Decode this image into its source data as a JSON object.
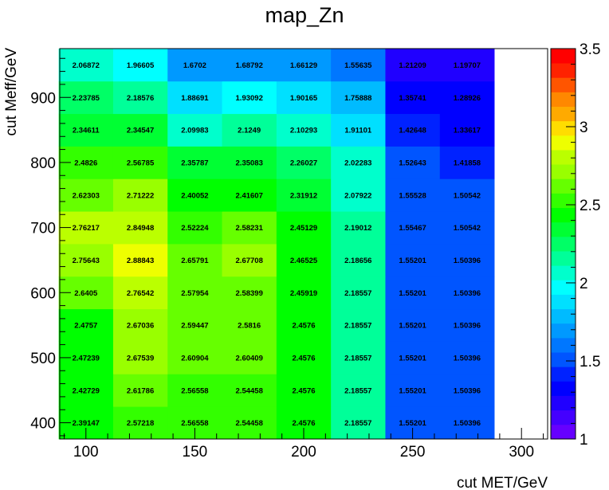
{
  "chart_data": {
    "type": "heatmap",
    "title": "map_Zn",
    "xlabel": "cut MET/GeV",
    "ylabel": "cut Meff/GeV",
    "x_bins": [
      100,
      125,
      150,
      175,
      200,
      225,
      250,
      275
    ],
    "x_bin_width": 25,
    "y_bins": [
      400,
      450,
      500,
      550,
      600,
      650,
      700,
      750,
      800,
      850,
      900,
      950
    ],
    "y_bin_height": 50,
    "xlim": [
      88,
      312
    ],
    "ylim": [
      375,
      975
    ],
    "x_ticks": [
      "100",
      "150",
      "200",
      "250",
      "300"
    ],
    "y_ticks": [
      "400",
      "500",
      "600",
      "700",
      "800",
      "900"
    ],
    "zlim": [
      1,
      3.5
    ],
    "z_ticks": [
      "1",
      "1.5",
      "2",
      "2.5",
      "3",
      "3.5"
    ],
    "palette": [
      "#6600ff",
      "#4400ff",
      "#2000ff",
      "#0000ff",
      "#0022ff",
      "#0055ff",
      "#0077ff",
      "#0099ff",
      "#00bbff",
      "#00e0ff",
      "#00ffff",
      "#00ffcc",
      "#00ff99",
      "#00ff66",
      "#00ff33",
      "#00ff00",
      "#33ff00",
      "#66ff00",
      "#99ff00",
      "#bbff00",
      "#eeff00",
      "#ffdd00",
      "#ffaa00",
      "#ff8800",
      "#ff5500",
      "#ff2200",
      "#ff0000"
    ],
    "rows": [
      {
        "y": 400,
        "values": [
          2.39147,
          2.57218,
          2.56558,
          2.54458,
          2.4576,
          2.18557,
          1.55201,
          1.50396
        ],
        "labels": [
          "2.39147",
          "2.57218",
          "2.56558",
          "2.54458",
          "2.4576",
          "2.18557",
          "1.55201",
          "1.50396"
        ]
      },
      {
        "y": 450,
        "values": [
          2.42729,
          2.61786,
          2.56558,
          2.54458,
          2.4576,
          2.18557,
          1.55201,
          1.50396
        ],
        "labels": [
          "2.42729",
          "2.61786",
          "2.56558",
          "2.54458",
          "2.4576",
          "2.18557",
          "1.55201",
          "1.50396"
        ]
      },
      {
        "y": 500,
        "values": [
          2.47239,
          2.67539,
          2.60904,
          2.60409,
          2.4576,
          2.18557,
          1.55201,
          1.50396
        ],
        "labels": [
          "2.47239",
          "2.67539",
          "2.60904",
          "2.60409",
          "2.4576",
          "2.18557",
          "1.55201",
          "1.50396"
        ]
      },
      {
        "y": 550,
        "values": [
          2.4757,
          2.67036,
          2.59447,
          2.5816,
          2.4576,
          2.18557,
          1.55201,
          1.50396
        ],
        "labels": [
          "2.4757",
          "2.67036",
          "2.59447",
          "2.5816",
          "2.4576",
          "2.18557",
          "1.55201",
          "1.50396"
        ]
      },
      {
        "y": 600,
        "values": [
          2.6405,
          2.76542,
          2.57954,
          2.58399,
          2.45919,
          2.18557,
          1.55201,
          1.50396
        ],
        "labels": [
          "2.6405",
          "2.76542",
          "2.57954",
          "2.58399",
          "2.45919",
          "2.18557",
          "1.55201",
          "1.50396"
        ]
      },
      {
        "y": 650,
        "values": [
          2.75643,
          2.88843,
          2.65791,
          2.67708,
          2.46525,
          2.18656,
          1.55201,
          1.50396
        ],
        "labels": [
          "2.75643",
          "2.88843",
          "2.65791",
          "2.67708",
          "2.46525",
          "2.18656",
          "1.55201",
          "1.50396"
        ]
      },
      {
        "y": 700,
        "values": [
          2.76217,
          2.84948,
          2.52224,
          2.58231,
          2.45129,
          2.19012,
          1.55467,
          1.50542
        ],
        "labels": [
          "2.76217",
          "2.84948",
          "2.52224",
          "2.58231",
          "2.45129",
          "2.19012",
          "1.55467",
          "1.50542"
        ]
      },
      {
        "y": 750,
        "values": [
          2.62303,
          2.71222,
          2.40052,
          2.41607,
          2.31912,
          2.07922,
          1.55528,
          1.50542
        ],
        "labels": [
          "2.62303",
          "2.71222",
          "2.40052",
          "2.41607",
          "2.31912",
          "2.07922",
          "1.55528",
          "1.50542"
        ]
      },
      {
        "y": 800,
        "values": [
          2.4826,
          2.56785,
          2.35787,
          2.35083,
          2.26027,
          2.02283,
          1.52643,
          1.41858
        ],
        "labels": [
          "2.4826",
          "2.56785",
          "2.35787",
          "2.35083",
          "2.26027",
          "2.02283",
          "1.52643",
          "1.41858"
        ]
      },
      {
        "y": 850,
        "values": [
          2.34611,
          2.34547,
          2.09983,
          2.1249,
          2.10293,
          1.91101,
          1.42648,
          1.33617
        ],
        "labels": [
          "2.34611",
          "2.34547",
          "2.09983",
          "2.1249",
          "2.10293",
          "1.91101",
          "1.42648",
          "1.33617"
        ]
      },
      {
        "y": 900,
        "values": [
          2.23785,
          2.18576,
          1.88691,
          1.93092,
          1.90165,
          1.75888,
          1.35741,
          1.28926
        ],
        "labels": [
          "2.23785",
          "2.18576",
          "1.88691",
          "1.93092",
          "1.90165",
          "1.75888",
          "1.35741",
          "1.28926"
        ]
      },
      {
        "y": 950,
        "values": [
          2.06872,
          1.96605,
          1.6702,
          1.68792,
          1.66129,
          1.55635,
          1.21209,
          1.19707
        ],
        "labels": [
          "2.06872",
          "1.96605",
          "1.6702",
          "1.68792",
          "1.66129",
          "1.55635",
          "1.21209",
          "1.19707"
        ]
      }
    ]
  }
}
